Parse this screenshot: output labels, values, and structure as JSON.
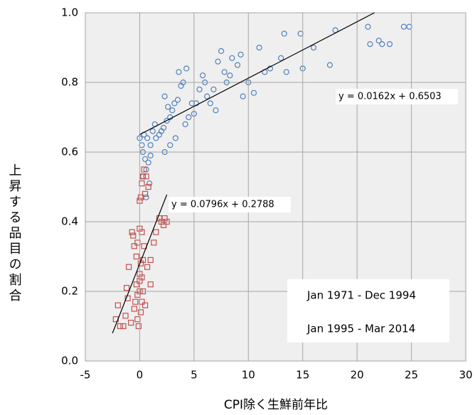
{
  "chart_data": {
    "type": "scatter",
    "xlabel": "CPI除く生鮮前年比",
    "ylabel": "上昇する品目の割合",
    "xlim": [
      -5,
      30
    ],
    "xticks": [
      -5,
      0,
      5,
      10,
      15,
      20,
      25,
      30
    ],
    "ylim": [
      0,
      1
    ],
    "yticks": [
      {
        "value": 0,
        "label": "0.0"
      },
      {
        "value": 0.2,
        "label": "0.2"
      },
      {
        "value": 0.4,
        "label": "0.4"
      },
      {
        "value": 0.6,
        "label": "0.6"
      },
      {
        "value": 0.8,
        "label": "0.8"
      },
      {
        "value": 1,
        "label": "1.0"
      }
    ],
    "grid": true,
    "legend": "lower right",
    "series": [
      {
        "name": "Jan 1971 - Dec 1994",
        "color": "#4f81bd",
        "marker": "circle",
        "x": [
          0,
          0.2,
          0.3,
          0.5,
          0.6,
          0.8,
          1,
          0.4,
          0.7,
          1.2,
          1.5,
          1.8,
          2,
          2.2,
          2.5,
          2.8,
          3,
          3.2,
          2.6,
          3.5,
          3.8,
          4,
          3.3,
          4.2,
          4.5,
          5,
          5.2,
          5.5,
          6,
          6.2,
          6.5,
          7,
          7.2,
          7.5,
          8,
          8.3,
          8.5,
          9,
          9.3,
          9.5,
          10,
          10.5,
          11,
          11.5,
          12,
          13,
          13.5,
          13.3,
          14.8,
          15,
          16,
          17.5,
          18,
          21,
          21.2,
          22,
          22.3,
          23,
          24.3,
          24.8,
          3.6,
          4.3,
          5.8,
          6.8,
          1.4,
          2.3,
          2.8,
          1,
          0.9,
          0.3,
          0.6,
          2.3,
          4.8,
          7.8
        ],
        "y": [
          0.64,
          0.62,
          0.6,
          0.58,
          0.55,
          0.57,
          0.62,
          0.65,
          0.64,
          0.66,
          0.64,
          0.65,
          0.66,
          0.67,
          0.69,
          0.7,
          0.72,
          0.74,
          0.73,
          0.75,
          0.79,
          0.8,
          0.64,
          0.68,
          0.7,
          0.71,
          0.74,
          0.78,
          0.8,
          0.76,
          0.74,
          0.72,
          0.86,
          0.89,
          0.8,
          0.82,
          0.87,
          0.85,
          0.88,
          0.76,
          0.8,
          0.77,
          0.9,
          0.83,
          0.84,
          0.87,
          0.83,
          0.94,
          0.94,
          0.84,
          0.9,
          0.85,
          0.95,
          0.96,
          0.91,
          0.92,
          0.91,
          0.91,
          0.96,
          0.96,
          0.83,
          0.84,
          0.82,
          0.78,
          0.68,
          0.6,
          0.62,
          0.59,
          0.51,
          0.53,
          0.47,
          0.76,
          0.74,
          0.83
        ],
        "trendline": {
          "label": "y = 0.0162x + 0.6503",
          "slope": 0.0162,
          "intercept": 0.6503,
          "x_range": [
            0,
            21.6
          ]
        }
      },
      {
        "name": "Jan 1995 - Mar 2014",
        "color": "#c0504d",
        "marker": "square",
        "x": [
          -2,
          -2.2,
          -1.8,
          -1.5,
          -1.3,
          -1.2,
          -1,
          -1.1,
          -0.8,
          -0.7,
          -0.6,
          -0.5,
          -0.5,
          -0.4,
          -0.3,
          -0.3,
          -0.2,
          -0.2,
          0,
          0,
          0,
          0.1,
          0.1,
          0.2,
          0.2,
          0.3,
          0.3,
          0,
          0.2,
          -0.2,
          0.4,
          0,
          0.1,
          0.2,
          0.3,
          0.4,
          0.6,
          0.8,
          1,
          1.3,
          1.5,
          1.8,
          2,
          2.2,
          2.5,
          2.3,
          0.5,
          -0.1,
          0.7,
          1,
          0.5
        ],
        "y": [
          0.16,
          0.12,
          0.1,
          0.1,
          0.13,
          0.21,
          0.27,
          0.18,
          0.11,
          0.37,
          0.36,
          0.33,
          0.15,
          0.17,
          0.22,
          0.3,
          0.19,
          0.12,
          0.2,
          0.23,
          0.25,
          0.14,
          0.28,
          0.17,
          0.24,
          0.29,
          0.2,
          0.38,
          0.37,
          0.34,
          0.33,
          0.46,
          0.47,
          0.51,
          0.53,
          0.55,
          0.53,
          0.5,
          0.29,
          0.34,
          0.37,
          0.41,
          0.4,
          0.39,
          0.4,
          0.41,
          0.48,
          0.1,
          0.27,
          0.22,
          0.16
        ],
        "trendline": {
          "label": "y = 0.0796x + 0.2788",
          "slope": 0.0796,
          "intercept": 0.2788,
          "x_range": [
            -2.5,
            2.5
          ]
        }
      }
    ]
  }
}
